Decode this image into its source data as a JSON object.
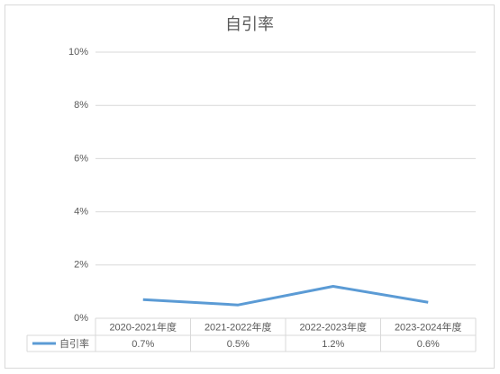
{
  "chart_data": {
    "type": "line",
    "title": "自引率",
    "categories": [
      "2020-2021年度",
      "2021-2022年度",
      "2022-2023年度",
      "2023-2024年度"
    ],
    "series": [
      {
        "name": "自引率",
        "color": "#5b9bd5",
        "values": [
          0.7,
          0.5,
          1.2,
          0.6
        ],
        "value_labels": [
          "0.7%",
          "0.5%",
          "1.2%",
          "0.6%"
        ]
      }
    ],
    "ylim": [
      0,
      10
    ],
    "yticks": [
      {
        "value": 0,
        "label": "0%"
      },
      {
        "value": 2,
        "label": "2%"
      },
      {
        "value": 4,
        "label": "4%"
      },
      {
        "value": 6,
        "label": "6%"
      },
      {
        "value": 8,
        "label": "8%"
      },
      {
        "value": 10,
        "label": "10%"
      }
    ],
    "grid": true,
    "data_table": true
  }
}
